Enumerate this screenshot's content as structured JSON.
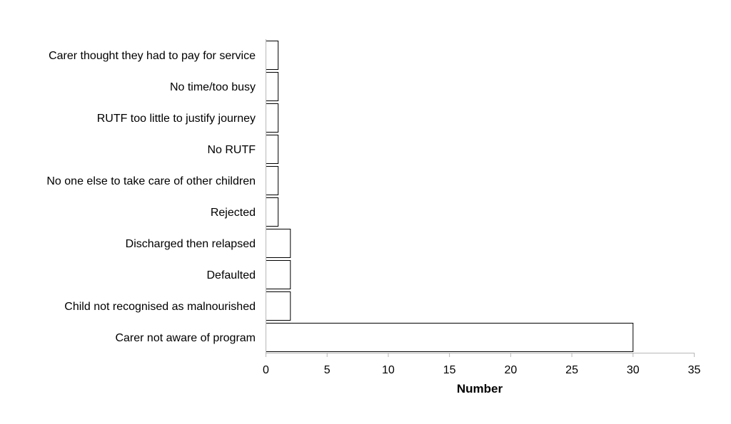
{
  "chart_data": {
    "type": "bar",
    "orientation": "horizontal",
    "title": "",
    "xlabel": "Number",
    "ylabel": "",
    "xlim": [
      0,
      35
    ],
    "xticks": [
      "0",
      "5",
      "10",
      "15",
      "20",
      "25",
      "30",
      "35"
    ],
    "grid": false,
    "legend": "none",
    "bar_fill": "#ffffff",
    "bar_stroke": "#000000",
    "categories": [
      "Carer thought they had to pay for service",
      "No time/too busy",
      "RUTF too little to justify journey",
      "No RUTF",
      "No one else to take care of other children",
      "Rejected",
      "Discharged then relapsed",
      "Defaulted",
      "Child not recognised as malnourished",
      "Carer not aware of program"
    ],
    "values": [
      1,
      1,
      1,
      1,
      1,
      1,
      2,
      2,
      2,
      30
    ]
  }
}
